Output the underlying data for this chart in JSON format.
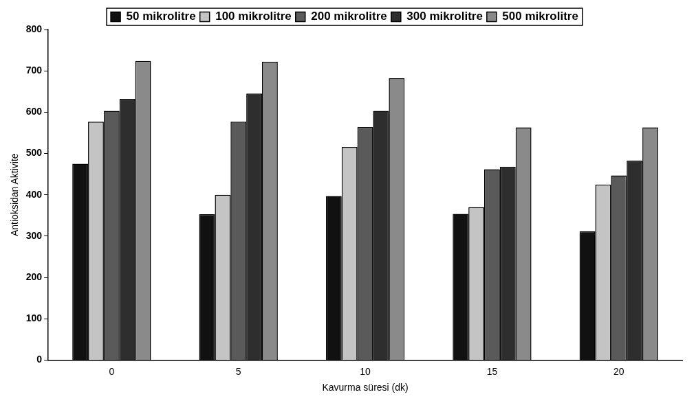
{
  "chart_data": {
    "type": "bar",
    "xlabel": "Kavurma süresi (dk)",
    "ylabel": "Antioksidan Aktivite",
    "categories": [
      "0",
      "5",
      "10",
      "15",
      "20"
    ],
    "series": [
      {
        "name": "50 mikrolitre",
        "color": "#111111",
        "values": [
          475,
          353,
          397,
          354,
          312
        ]
      },
      {
        "name": "100 mikrolitre",
        "color": "#c4c4c4",
        "values": [
          577,
          400,
          516,
          370,
          425
        ]
      },
      {
        "name": "200 mikrolitre",
        "color": "#5a5a5a",
        "values": [
          603,
          577,
          564,
          462,
          447
        ]
      },
      {
        "name": "300 mikrolitre",
        "color": "#2e2e2e",
        "values": [
          632,
          645,
          603,
          468,
          483
        ]
      },
      {
        "name": "500 mikrolitre",
        "color": "#8a8a8a",
        "values": [
          724,
          722,
          682,
          563,
          563
        ]
      }
    ],
    "ylim": [
      0,
      800
    ],
    "yticks": [
      0,
      100,
      200,
      300,
      400,
      500,
      600,
      700,
      800
    ],
    "grid": false,
    "legend": "top"
  }
}
